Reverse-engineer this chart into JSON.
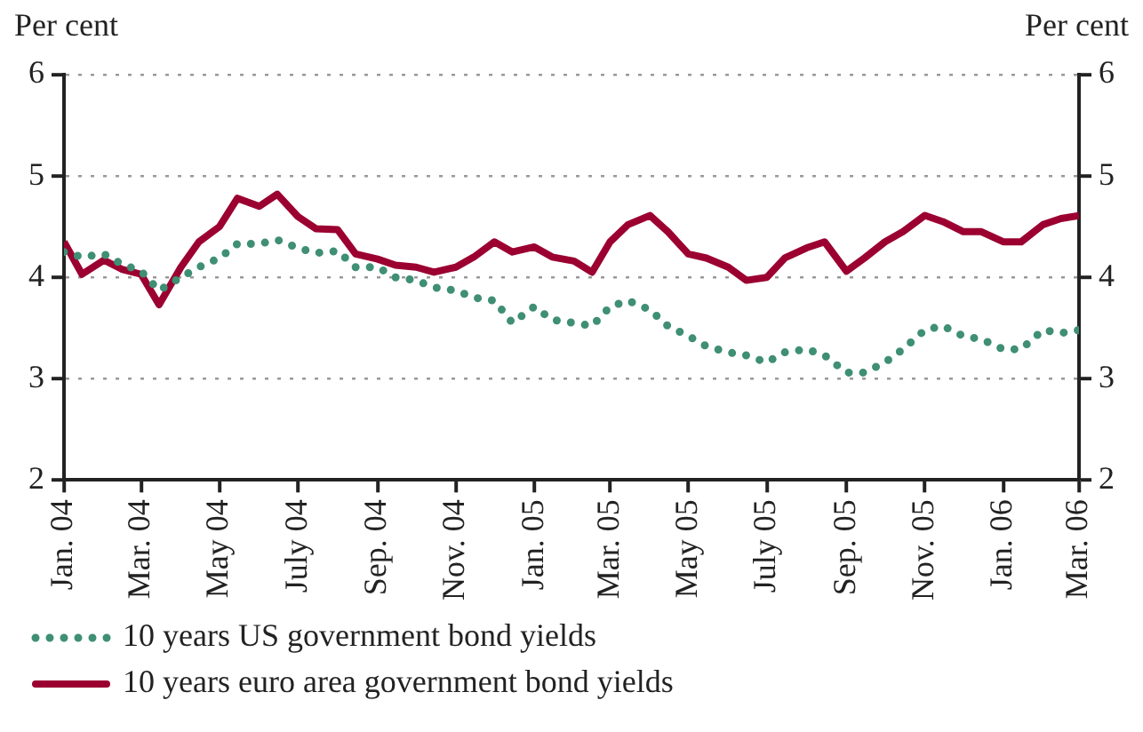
{
  "chart_data": {
    "type": "line",
    "ylabel": "Per cent",
    "y2label": "Per cent",
    "x": [
      "2004-01-01",
      "2004-01-15",
      "2004-02-01",
      "2004-02-15",
      "2004-03-01",
      "2004-03-15",
      "2004-04-01",
      "2004-04-15",
      "2004-05-01",
      "2004-05-15",
      "2004-06-01",
      "2004-06-15",
      "2004-07-01",
      "2004-07-15",
      "2004-08-01",
      "2004-08-15",
      "2004-09-01",
      "2004-09-15",
      "2004-10-01",
      "2004-10-15",
      "2004-11-01",
      "2004-11-15",
      "2004-12-01",
      "2004-12-15",
      "2005-01-01",
      "2005-01-15",
      "2005-02-01",
      "2005-02-15",
      "2005-03-01",
      "2005-03-15",
      "2005-04-01",
      "2005-04-15",
      "2005-05-01",
      "2005-05-15",
      "2005-06-01",
      "2005-06-15",
      "2005-07-01",
      "2005-07-15",
      "2005-08-01",
      "2005-08-15",
      "2005-09-01",
      "2005-09-15",
      "2005-10-01",
      "2005-10-15",
      "2005-11-01",
      "2005-11-15",
      "2005-12-01",
      "2005-12-15",
      "2006-01-01",
      "2006-01-15",
      "2006-02-01",
      "2006-02-15",
      "2006-03-01"
    ],
    "series": [
      {
        "name": "10 years US government bond yields",
        "color": "#3f8f74",
        "line_style": "dotted",
        "values": [
          4.25,
          4.2,
          4.23,
          4.13,
          4.06,
          3.87,
          4.0,
          4.1,
          4.19,
          4.33,
          4.33,
          4.37,
          4.29,
          4.24,
          4.26,
          4.1,
          4.1,
          4.0,
          3.97,
          3.9,
          3.87,
          3.8,
          3.77,
          3.55,
          3.71,
          3.58,
          3.55,
          3.52,
          3.71,
          3.77,
          3.68,
          3.52,
          3.42,
          3.32,
          3.26,
          3.23,
          3.16,
          3.26,
          3.29,
          3.23,
          3.06,
          3.06,
          3.16,
          3.29,
          3.48,
          3.52,
          3.42,
          3.39,
          3.29,
          3.29,
          3.48,
          3.45,
          3.48
        ]
      },
      {
        "name": "10 years euro area government bond yields",
        "color": "#9b0031",
        "line_style": "solid",
        "values": [
          4.35,
          4.03,
          4.17,
          4.08,
          4.03,
          3.73,
          4.1,
          4.35,
          4.5,
          4.78,
          4.7,
          4.82,
          4.6,
          4.48,
          4.47,
          4.23,
          4.18,
          4.12,
          4.1,
          4.05,
          4.1,
          4.2,
          4.35,
          4.25,
          4.3,
          4.2,
          4.16,
          4.05,
          4.35,
          4.52,
          4.61,
          4.45,
          4.23,
          4.19,
          4.1,
          3.97,
          4.0,
          4.19,
          4.29,
          4.35,
          4.06,
          4.19,
          4.35,
          4.45,
          4.61,
          4.55,
          4.45,
          4.45,
          4.35,
          4.35,
          4.52,
          4.58,
          4.61
        ]
      }
    ],
    "xlim": [
      "2004-01-01",
      "2006-03-01"
    ],
    "xticks": [
      {
        "value": "2004-01-01",
        "label": "Jan. 04"
      },
      {
        "value": "2004-03-01",
        "label": "Mar. 04"
      },
      {
        "value": "2004-05-01",
        "label": "May 04"
      },
      {
        "value": "2004-07-01",
        "label": "July 04"
      },
      {
        "value": "2004-09-01",
        "label": "Sep. 04"
      },
      {
        "value": "2004-11-01",
        "label": "Nov. 04"
      },
      {
        "value": "2005-01-01",
        "label": "Jan. 05"
      },
      {
        "value": "2005-03-01",
        "label": "Mar. 05"
      },
      {
        "value": "2005-05-01",
        "label": "May 05"
      },
      {
        "value": "2005-07-01",
        "label": "July 05"
      },
      {
        "value": "2005-09-01",
        "label": "Sep. 05"
      },
      {
        "value": "2005-11-01",
        "label": "Nov. 05"
      },
      {
        "value": "2006-01-01",
        "label": "Jan. 06"
      },
      {
        "value": "2006-03-01",
        "label": "Mar. 06"
      }
    ],
    "ylim": [
      2,
      6
    ],
    "yticks": [
      2,
      3,
      4,
      5,
      6
    ],
    "y2lim": [
      2,
      6
    ],
    "y2ticks": [
      2,
      3,
      4,
      5,
      6
    ],
    "grid": "y",
    "legend": "bottom",
    "marker": "none"
  }
}
